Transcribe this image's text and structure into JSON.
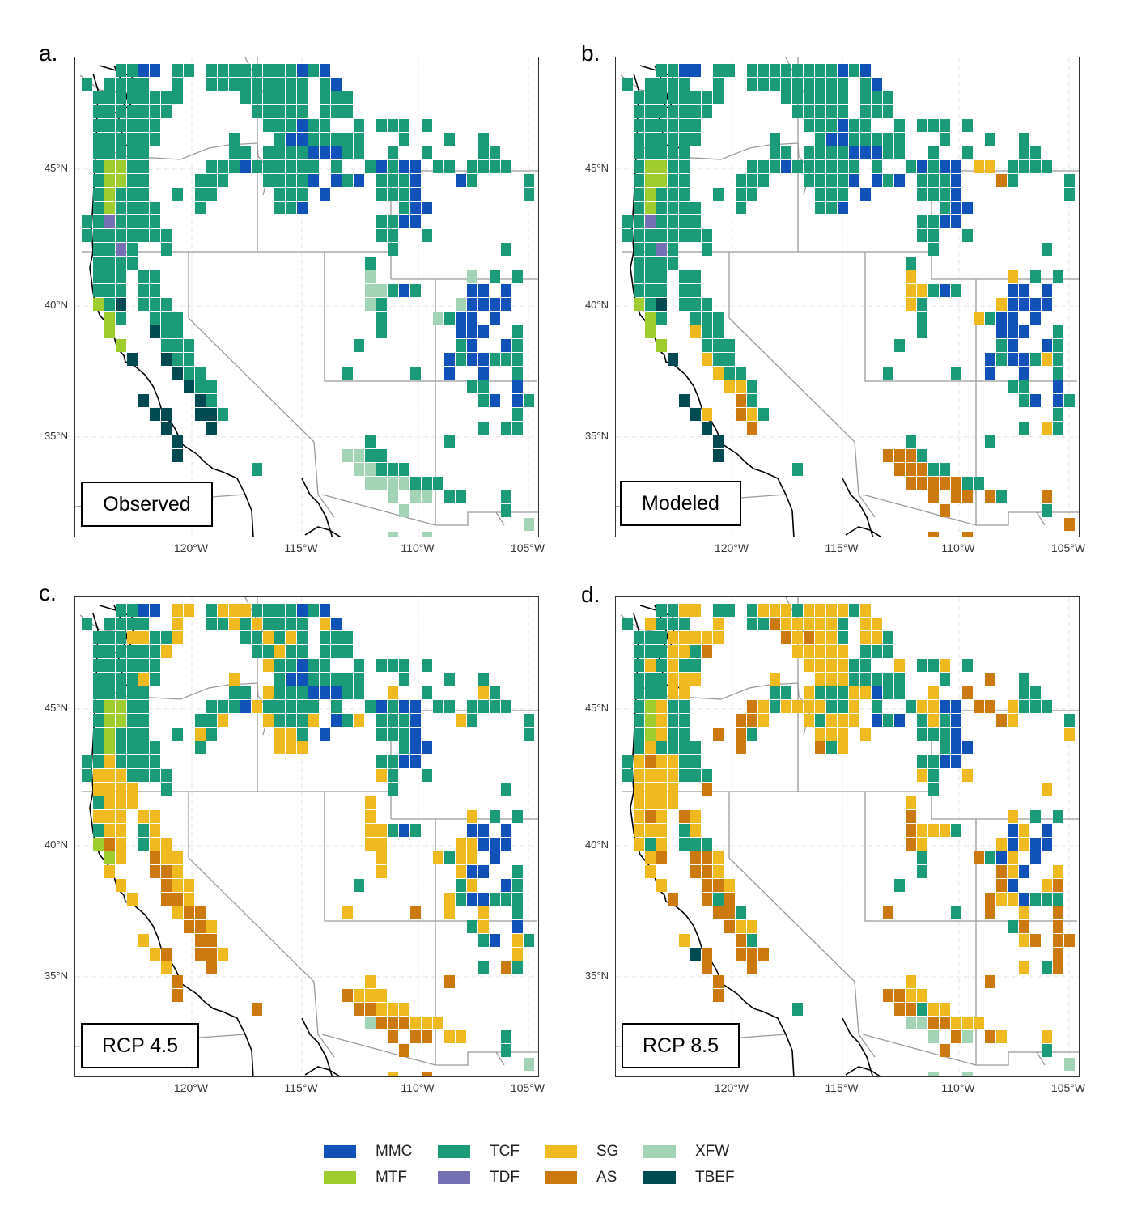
{
  "figure": {
    "panels": [
      {
        "id": "a",
        "letter": "a.",
        "scenario_label": "Observed",
        "grid": [
          "...TTMM.TT.TTTTTTTTMTM..................",
          "T.TTTT..T..TTTTTTTTT.TM.................",
          ".TTTTTTTT.....TTTTTT.TTT................",
          ".TTTTTTT.......TTTTT.TTT................",
          ".TTTTTT.........TTTMTT..T.TTT.T.........",
          ".TTTTTT......T...TMMTTTTT...T...T..T....",
          ".TTTTT.......TT.TTTTMMMTT..T..T....TT...",
          ".TFFTT.....TTTMTTTTTT.T..TMTMM.TT.TTTT..",
          ".TFFTT....TTT...TTTTM.MTM.TTTM...MT....T",
          ".TFTTT..T.TT.....TTT.M....TTTM.........T",
          ".TFTTTT...T......TTM........TMM.........",
          "TTDTTTT...................TTMM..........",
          "TTTTTTTT..................TT..T.........",
          ".TTDT..T...................T.........T..",
          ".TTTT....................T..............",
          ".TTT.TT..................X........X.T.T.",
          ".TTT.TT..................XXTMT....MM.M..",
          ".FTB.TTT.................XT......XMMMM..",
          "..FT..TTT.................T....XTMM.M...",
          "..F...BTT.................T......MMM..T.",
          "...F...TTT..............T........TM..MT.",
          "....B..BTT......................MTMMTTT.",
          "........BTT............T.....T..M..M..T.",
          ".........BTT......................TT..M.",
          ".....B....BT.......................TM.MT",
          "......BB..BBT.........................T.",
          ".......B...B.......................T.TT.",
          "........B................T......T.......",
          "........B..............XXTT.............",
          "...............T........XXTTT...........",
          ".........................XXXXTTT........",
          "...........................X.XX.TT...T..",
          "............................X........T..",
          ".......................................X",
          "...........................X..X........."
        ]
      },
      {
        "id": "b",
        "letter": "b.",
        "scenario_label": "Modeled",
        "grid": [
          "...TTMM.TT.TTTTTTTTMTM..................",
          "T.TTTT..T..TTTTTTTTT.TM.................",
          ".TTTTTTTT.....TTTTTT.TTT................",
          ".TTTTTTT.......TTTTT.TTT................",
          ".TTTTTT.........TTTMTT..T.TTT.T.........",
          ".TTTTTT......T...TMMTTTTT...T...T..T....",
          ".TTTTT.......TT.TTTTMMMTT..T..T....TT...",
          ".TFFTT.....TTTMTTTTTT.T..TMTMM.SS.TTTT..",
          ".TFFTT....TTT...TTTTM.MTM.TTTM...AT....T",
          ".TFTTT..T.TT.....TTT.M....TTTM.........T",
          ".TFTTTT...T......TTM........TMM.........",
          "TTDTTTT...................TTMM..........",
          "TTTTTTTT..................TT..T.........",
          ".TTDT..T...................T.........T..",
          ".TTTT....................T..............",
          ".TTT.TT..................S........S.T.T.",
          ".TTT.TT..................SSTMT....MM.M..",
          ".FTB.TTT.................ST......SMMMM..",
          "..FT..TTT.................T....STMM.M...",
          "..F...STT.................T......MMM..T.",
          "...F...TTT..............T........TM..MT.",
          "....B..STT......................MTMMTST.",
          "........STT............T.....T..M..M..T.",
          ".........SST......................TT..M.",
          ".....B....AT.......................TM.MT",
          "......BS..AST.........................T.",
          ".......B...A.......................T.ST.",
          "........B................T......T.......",
          "........B..............AAAT.............",
          "...............T........AAATT...........",
          ".........................AAAAATT........",
          "...........................A.AA.AT...A..",
          "............................A........T..",
          ".......................................A",
          "...........................A..A........."
        ]
      },
      {
        "id": "c",
        "letter": "c.",
        "scenario_label": "RCP 4.5",
        "grid": [
          "...TTMM.SS.TSSSTTTTMTM..................",
          "T.TTTT..S..TTSTSTTTT.SM.................",
          ".TTTSSTTS.....TTSTST.TTT................",
          ".TTTTTTS.......TTSTT.TTT................",
          ".TTTTTT.........STTMTT..T.TTT.T.........",
          ".TTTTST......S...TMMTTTTT...T...T..T....",
          ".TTTTT.......TT.STTTMMMTT..S..T....ST...",
          ".TFFTT.....TTTMSTTTTT.T..TMTMM.TT.TTTT..",
          ".TFFTT....TTS...STTTS.MTS.TTTM...ST....T",
          ".TFTTT..T.ST.....SST.M....TTTM.........T",
          ".TFTTTT...T......SSS........TMM.........",
          "TTSTTTT...................TTMM..........",
          "TSSSTTTT..................ST..T.........",
          ".SSSS..T...................T.........T..",
          ".TSSS....................S..............",
          ".SSS.SS..................S........S.T.T.",
          ".TSS.TS..................SSTMT....MM.M..",
          ".FAS.TSS.................SS......SSMMM..",
          "..FS..ASS.................S....STSS.M...",
          "..S...AAS.................S......SMM..T.",
          "...S...ASS..............T........TS..MT.",
          "....S..AAS......................STMMTTT.",
          "........SAA............S.....A..S..S..T.",
          ".........AAS......................TS..M.",
          ".....S....AA.......................TM.ST",
          "......SA..AAS.........................S.",
          ".......S...A.......................T.AT.",
          "........A................S......A.......",
          "........A..............ASSS.............",
          "...............A........AASSS...........",
          ".........................XAAASSS........",
          "...........................A.AA.SS...T..",
          "............................A........T..",
          ".......................................X",
          "...........................S..A........."
        ]
      },
      {
        "id": "d",
        "letter": "d.",
        "scenario_label": "RCP 8.5",
        "grid": [
          "...TTSS.TT.TSSSTSSSSTS..................",
          "T.STTT..S..TTASSSSST.SS.................",
          ".TTTSSSSS.....ASASST.SST................",
          ".TTTSSTA.......SSSSS.TTT................",
          ".TSTSTT.........SSSSTT..S.TTS.T.........",
          ".TTTSSS......S...SSSTTTTT...T...A..T....",
          ".TTTSS.......TT.STTTSSMTT..S..A....TT...",
          ".TFSTT.....ASTSSSSTTS.T..TSSMM.AA.STTT..",
          ".TFSTT....AAS...STSSS.MTM.TSTM...AS....T",
          ".TFSTT..A.AT.....SSS.S....TTTM.........S",
          ".TSTTTT...A......ATS........TMM.........",
          "TSASSTT...................TTMM..........",
          "TSSSSTTT..................ST..S.........",
          ".SSSS..A...................T.........S..",
          ".SSSS....................S..............",
          ".SAS.AS..................A........S.T.T.",
          ".SSS.TS..................ASSST....MS.M..",
          ".STS.TTT.................AS......SMSMM..",
          "..SA..AAS.................T....ATMS.M...",
          "..S...AAS.................T......ASM..S.",
          "...S...AAS..............T........AM..SA.",
          "....A..ATA......................ASSMTTT.",
          "........AAT............A.....T..A..S..A.",
          ".........ASS......................TA..A.",
          ".....S....AT.......................SA.AA",
          "......BA..AAA.........................A.",
          ".......A...A.......................S.TA.",
          "........A................S......A.......",
          "........A..............AASS.............",
          "...............T........AATSS...........",
          ".........................XXAASSS........",
          "...........................X.AX.AS...S..",
          "............................A........T..",
          ".......................................X",
          "...........................X..X........."
        ]
      }
    ],
    "axes": {
      "lat_ticks": [
        "45°N",
        "40°N",
        "35°N"
      ],
      "lon_ticks": [
        "120°W",
        "115°W",
        "110°W",
        "105°W"
      ]
    },
    "legend": {
      "items": [
        {
          "code": "M",
          "label": "MMC",
          "color": "#1152b9"
        },
        {
          "code": "F",
          "label": "MTF",
          "color": "#9fcd2f"
        },
        {
          "code": "T",
          "label": "TCF",
          "color": "#1b9b77"
        },
        {
          "code": "D",
          "label": "TDF",
          "color": "#7570b3"
        },
        {
          "code": "S",
          "label": "SG",
          "color": "#efba20"
        },
        {
          "code": "A",
          "label": "AS",
          "color": "#cc790f"
        },
        {
          "code": "X",
          "label": "XFW",
          "color": "#a3d4b5"
        },
        {
          "code": "B",
          "label": "TBEF",
          "color": "#024a52"
        }
      ]
    }
  }
}
